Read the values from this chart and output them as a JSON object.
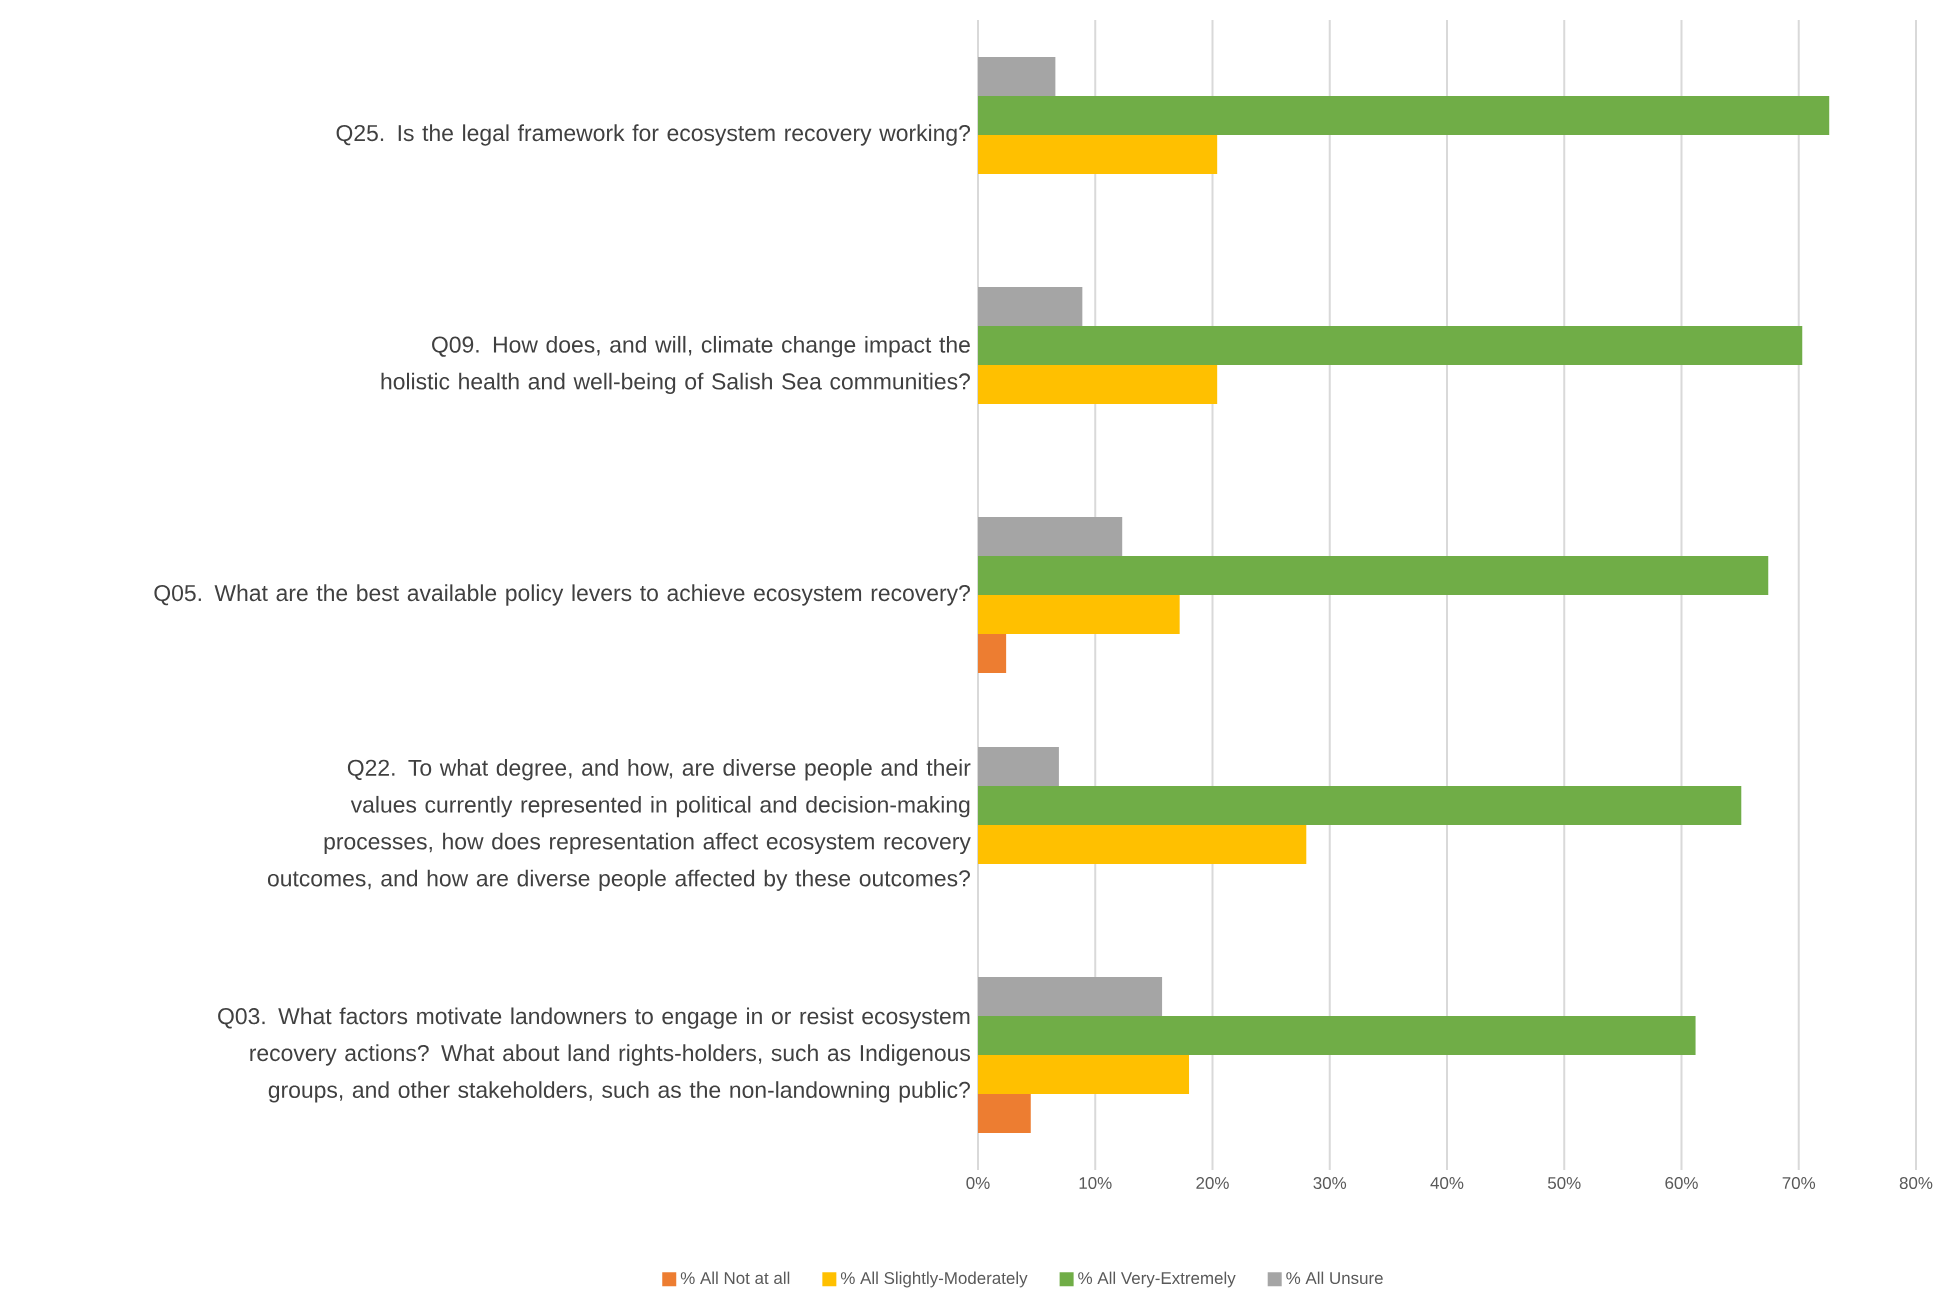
{
  "chart_data": {
    "type": "bar",
    "orientation": "horizontal",
    "categories": [
      "Q25. Is the legal framework for ecosystem recovery working?",
      "Q09. How does, and will, climate change impact the holistic health and well-being of Salish Sea communities?",
      "Q05. What are the best available policy levers to achieve ecosystem recovery?",
      "Q22. To what degree, and how, are diverse people and their values currently represented in political and decision-making processes, how does representation affect ecosystem recovery outcomes, and how are diverse people affected by these outcomes?",
      "Q03. What factors motivate landowners to engage in or resist ecosystem recovery actions? What about land rights-holders, such as Indigenous groups, and other stakeholders, such as the non-landowning public?"
    ],
    "series": [
      {
        "name": "% All Not at all",
        "color": "#ed7d31",
        "values": [
          0,
          0,
          2.4,
          0,
          4.5
        ]
      },
      {
        "name": "% All Slightly-Moderately",
        "color": "#ffc000",
        "values": [
          20.4,
          20.4,
          17.2,
          28.0,
          18.0
        ]
      },
      {
        "name": "% All Very-Extremely",
        "color": "#70ad47",
        "values": [
          72.6,
          70.3,
          67.4,
          65.1,
          61.2
        ]
      },
      {
        "name": "% All Unsure",
        "color": "#a5a5a5",
        "values": [
          6.6,
          8.9,
          12.3,
          6.9,
          15.7
        ]
      }
    ],
    "xlim": [
      0,
      80
    ],
    "xticks": [
      {
        "value": 0,
        "label": "0%"
      },
      {
        "value": 10,
        "label": "10%"
      },
      {
        "value": 20,
        "label": "20%"
      },
      {
        "value": 30,
        "label": "30%"
      },
      {
        "value": 40,
        "label": "40%"
      },
      {
        "value": 50,
        "label": "50%"
      },
      {
        "value": 60,
        "label": "60%"
      },
      {
        "value": 70,
        "label": "70%"
      },
      {
        "value": 80,
        "label": "80%"
      }
    ],
    "grid": "x",
    "legend": "bottom"
  }
}
